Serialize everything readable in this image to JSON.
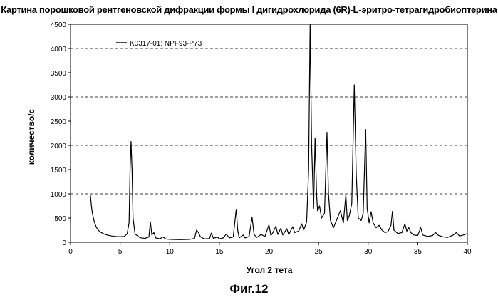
{
  "chart_data": {
    "type": "line",
    "title": "Картина порошковой рентгеновской дифракции формы I дигидрохлорида (6R)-L-эритро-тетрагидробиоптерина",
    "xlabel": "Угол 2 тета",
    "ylabel": "количество/с",
    "xlim": [
      0,
      40
    ],
    "ylim": [
      0,
      4500
    ],
    "xticks": [
      0,
      5,
      10,
      15,
      20,
      25,
      30,
      35,
      40
    ],
    "yticks": [
      0,
      500,
      1000,
      1500,
      2000,
      2500,
      3000,
      3500,
      4000,
      4500
    ],
    "grid": "horizontal dashed at 1000, 2000, 3000, 4000",
    "legend_position": "top-left",
    "series": [
      {
        "name": "K0317-01: NPF93-P73",
        "color": "#000000",
        "points": [
          [
            2.0,
            980
          ],
          [
            2.1,
            760
          ],
          [
            2.2,
            600
          ],
          [
            2.4,
            420
          ],
          [
            2.6,
            310
          ],
          [
            2.8,
            250
          ],
          [
            3.0,
            210
          ],
          [
            3.5,
            160
          ],
          [
            4.0,
            135
          ],
          [
            4.5,
            120
          ],
          [
            5.0,
            115
          ],
          [
            5.4,
            120
          ],
          [
            5.7,
            170
          ],
          [
            5.9,
            400
          ],
          [
            6.0,
            1500
          ],
          [
            6.1,
            2080
          ],
          [
            6.2,
            1500
          ],
          [
            6.3,
            500
          ],
          [
            6.5,
            170
          ],
          [
            7.0,
            95
          ],
          [
            7.5,
            80
          ],
          [
            7.9,
            110
          ],
          [
            8.05,
            420
          ],
          [
            8.2,
            150
          ],
          [
            8.4,
            200
          ],
          [
            8.6,
            90
          ],
          [
            9.0,
            70
          ],
          [
            9.3,
            110
          ],
          [
            9.6,
            70
          ],
          [
            10.0,
            60
          ],
          [
            11.0,
            55
          ],
          [
            12.0,
            60
          ],
          [
            12.5,
            80
          ],
          [
            12.7,
            250
          ],
          [
            12.9,
            200
          ],
          [
            13.1,
            110
          ],
          [
            13.5,
            70
          ],
          [
            14.0,
            75
          ],
          [
            14.2,
            190
          ],
          [
            14.4,
            80
          ],
          [
            14.8,
            110
          ],
          [
            15.0,
            70
          ],
          [
            15.4,
            90
          ],
          [
            15.7,
            170
          ],
          [
            16.0,
            90
          ],
          [
            16.4,
            110
          ],
          [
            16.7,
            680
          ],
          [
            16.85,
            250
          ],
          [
            17.0,
            90
          ],
          [
            17.4,
            150
          ],
          [
            17.6,
            90
          ],
          [
            18.0,
            120
          ],
          [
            18.3,
            520
          ],
          [
            18.5,
            160
          ],
          [
            18.8,
            100
          ],
          [
            19.2,
            160
          ],
          [
            19.6,
            120
          ],
          [
            20.0,
            360
          ],
          [
            20.2,
            140
          ],
          [
            20.4,
            200
          ],
          [
            20.7,
            330
          ],
          [
            20.9,
            160
          ],
          [
            21.2,
            290
          ],
          [
            21.4,
            150
          ],
          [
            21.8,
            280
          ],
          [
            22.0,
            160
          ],
          [
            22.4,
            320
          ],
          [
            22.6,
            200
          ],
          [
            23.0,
            230
          ],
          [
            23.3,
            380
          ],
          [
            23.5,
            250
          ],
          [
            23.8,
            420
          ],
          [
            24.0,
            1500
          ],
          [
            24.15,
            4680
          ],
          [
            24.3,
            2000
          ],
          [
            24.5,
            700
          ],
          [
            24.65,
            2150
          ],
          [
            24.8,
            1000
          ],
          [
            24.9,
            650
          ],
          [
            25.1,
            750
          ],
          [
            25.3,
            500
          ],
          [
            25.6,
            600
          ],
          [
            25.85,
            2270
          ],
          [
            26.0,
            1000
          ],
          [
            26.2,
            450
          ],
          [
            26.5,
            300
          ],
          [
            26.9,
            500
          ],
          [
            27.2,
            650
          ],
          [
            27.5,
            400
          ],
          [
            27.75,
            980
          ],
          [
            27.9,
            450
          ],
          [
            28.1,
            550
          ],
          [
            28.35,
            800
          ],
          [
            28.6,
            3250
          ],
          [
            28.8,
            1400
          ],
          [
            29.0,
            500
          ],
          [
            29.3,
            450
          ],
          [
            29.5,
            600
          ],
          [
            29.75,
            2330
          ],
          [
            29.9,
            700
          ],
          [
            30.1,
            400
          ],
          [
            30.3,
            630
          ],
          [
            30.5,
            400
          ],
          [
            30.8,
            300
          ],
          [
            31.1,
            350
          ],
          [
            31.4,
            250
          ],
          [
            31.7,
            200
          ],
          [
            32.0,
            220
          ],
          [
            32.3,
            350
          ],
          [
            32.45,
            640
          ],
          [
            32.6,
            250
          ],
          [
            33.0,
            180
          ],
          [
            33.4,
            200
          ],
          [
            33.7,
            380
          ],
          [
            33.9,
            230
          ],
          [
            34.1,
            300
          ],
          [
            34.3,
            200
          ],
          [
            34.6,
            150
          ],
          [
            35.0,
            140
          ],
          [
            35.3,
            300
          ],
          [
            35.5,
            150
          ],
          [
            36.0,
            120
          ],
          [
            36.5,
            140
          ],
          [
            36.8,
            200
          ],
          [
            37.1,
            140
          ],
          [
            37.6,
            110
          ],
          [
            38.0,
            100
          ],
          [
            38.5,
            140
          ],
          [
            38.9,
            200
          ],
          [
            39.2,
            130
          ],
          [
            39.6,
            150
          ],
          [
            40.0,
            180
          ]
        ]
      }
    ]
  },
  "caption": "Фиг.12"
}
